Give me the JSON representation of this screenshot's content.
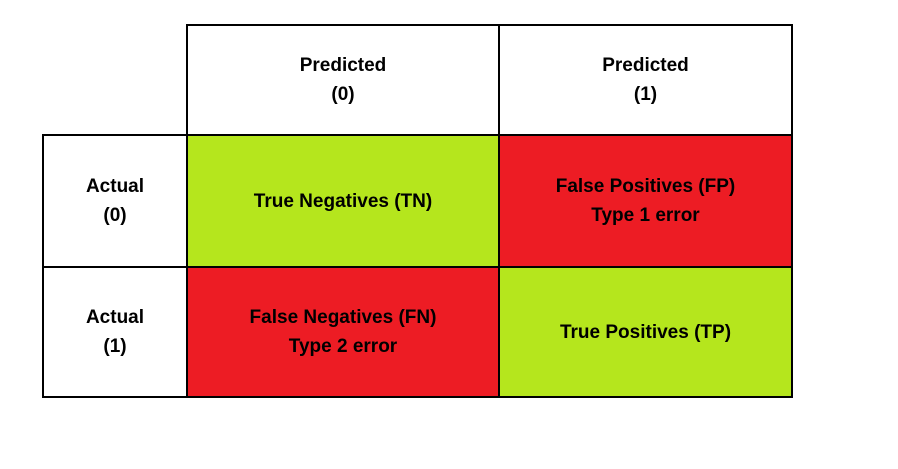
{
  "colors": {
    "correct": "#b5e61d",
    "error": "#ed1c24",
    "header": "#ffffff",
    "border": "#000000"
  },
  "columns": [
    {
      "line1": "Predicted",
      "line2": "(0)"
    },
    {
      "line1": "Predicted",
      "line2": "(1)"
    }
  ],
  "rows": [
    {
      "line1": "Actual",
      "line2": "(0)"
    },
    {
      "line1": "Actual",
      "line2": "(1)"
    }
  ],
  "cells": {
    "tn": {
      "line1": "True Negatives (TN)",
      "line2": "",
      "kind": "correct"
    },
    "fp": {
      "line1": "False Positives (FP)",
      "line2": "Type 1 error",
      "kind": "error"
    },
    "fn": {
      "line1": "False Negatives (FN)",
      "line2": "Type 2 error",
      "kind": "error"
    },
    "tp": {
      "line1": "True Positives (TP)",
      "line2": "",
      "kind": "correct"
    }
  }
}
